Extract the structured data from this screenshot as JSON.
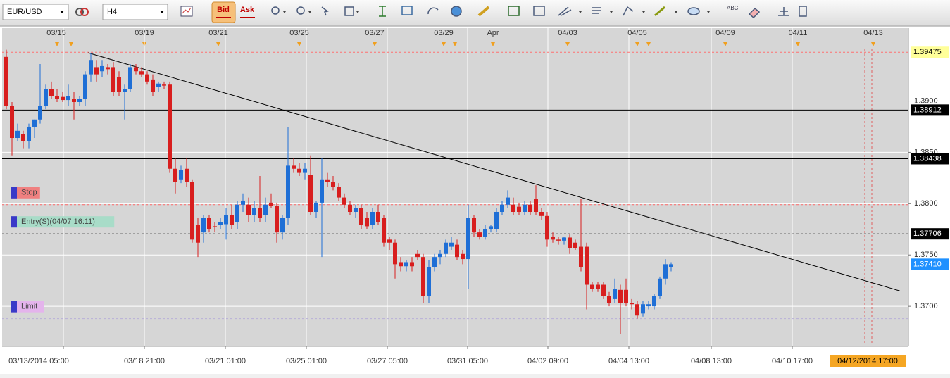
{
  "toolbar": {
    "symbol": "EUR/USD",
    "timeframe": "H4",
    "bid": "Bid",
    "ask": "Ask",
    "text_tool": "ABC"
  },
  "chart_data": {
    "type": "candlestick",
    "ylim": [
      1.3661,
      1.3971
    ],
    "yticks": [
      {
        "value": 1.37,
        "label": "1.3700"
      },
      {
        "value": 1.375,
        "label": "1.3750"
      },
      {
        "value": 1.38,
        "label": "1.3800"
      },
      {
        "value": 1.385,
        "label": "1.3850"
      },
      {
        "value": 1.39,
        "label": "1.3900"
      }
    ],
    "grid": true,
    "up_color": "#1f6fd6",
    "down_color": "#d81e1e",
    "date_labels": [
      "03/15",
      "03/19",
      "03/21",
      "03/25",
      "03/27",
      "03/29",
      "Apr",
      "04/03",
      "04/05",
      "04/09",
      "04/11",
      "04/13"
    ],
    "time_labels": [
      "03/13/2014 05:00",
      "03/18 21:00",
      "03/21 01:00",
      "03/25 01:00",
      "03/27 05:00",
      "03/31 05:00",
      "04/02 09:00",
      "04/04 13:00",
      "04/08 13:00",
      "04/10 17:00"
    ],
    "cursor_time": "04/12/2014 17:00",
    "candles": [
      [
        1.3943,
        1.395,
        1.3892,
        1.3895
      ],
      [
        1.3895,
        1.3899,
        1.3847,
        1.3864
      ],
      [
        1.3864,
        1.3878,
        1.3861,
        1.3871
      ],
      [
        1.3868,
        1.3871,
        1.3854,
        1.3861
      ],
      [
        1.3861,
        1.3878,
        1.3854,
        1.3875
      ],
      [
        1.3875,
        1.3882,
        1.3864,
        1.3882
      ],
      [
        1.3882,
        1.3936,
        1.3878,
        1.3895
      ],
      [
        1.3895,
        1.3916,
        1.3892,
        1.3912
      ],
      [
        1.3912,
        1.3919,
        1.3902,
        1.3905
      ],
      [
        1.3905,
        1.3912,
        1.3899,
        1.3902
      ],
      [
        1.3904,
        1.3909,
        1.3899,
        1.3901
      ],
      [
        1.3901,
        1.3916,
        1.3895,
        1.3905
      ],
      [
        1.3902,
        1.3909,
        1.3882,
        1.3899
      ],
      [
        1.3899,
        1.3905,
        1.3895,
        1.3902
      ],
      [
        1.3902,
        1.3929,
        1.3895,
        1.3926
      ],
      [
        1.3926,
        1.3947,
        1.3919,
        1.394
      ],
      [
        1.3933,
        1.394,
        1.3919,
        1.3926
      ],
      [
        1.3929,
        1.394,
        1.3923,
        1.3934
      ],
      [
        1.3933,
        1.3936,
        1.3926,
        1.3931
      ],
      [
        1.3933,
        1.3938,
        1.3905,
        1.3909
      ],
      [
        1.3923,
        1.3929,
        1.3905,
        1.3909
      ],
      [
        1.3909,
        1.3916,
        1.3882,
        1.3912
      ],
      [
        1.3912,
        1.3936,
        1.3909,
        1.3933
      ],
      [
        1.3933,
        1.3936,
        1.3926,
        1.3929
      ],
      [
        1.3929,
        1.3933,
        1.3923,
        1.3926
      ],
      [
        1.3926,
        1.3929,
        1.3916,
        1.3919
      ],
      [
        1.3921,
        1.3926,
        1.3905,
        1.3909
      ],
      [
        1.3914,
        1.3919,
        1.3909,
        1.3917
      ],
      [
        1.3916,
        1.3919,
        1.3912,
        1.3915
      ],
      [
        1.3916,
        1.3919,
        1.383,
        1.3834
      ],
      [
        1.3834,
        1.3844,
        1.381,
        1.3821
      ],
      [
        1.3823,
        1.3837,
        1.382,
        1.3833
      ],
      [
        1.3834,
        1.3844,
        1.3816,
        1.3821
      ],
      [
        1.3821,
        1.3823,
        1.3762,
        1.3765
      ],
      [
        1.3779,
        1.3786,
        1.3748,
        1.3762
      ],
      [
        1.3772,
        1.3789,
        1.3762,
        1.3786
      ],
      [
        1.3786,
        1.3789,
        1.3772,
        1.3775
      ],
      [
        1.3778,
        1.3782,
        1.3772,
        1.3777
      ],
      [
        1.3779,
        1.3786,
        1.3775,
        1.3782
      ],
      [
        1.378,
        1.3796,
        1.3765,
        1.3789
      ],
      [
        1.3789,
        1.3799,
        1.3775,
        1.3779
      ],
      [
        1.3782,
        1.3803,
        1.3775,
        1.3799
      ],
      [
        1.3799,
        1.381,
        1.3792,
        1.3803
      ],
      [
        1.3799,
        1.3806,
        1.3782,
        1.3789
      ],
      [
        1.3789,
        1.3803,
        1.3782,
        1.3796
      ],
      [
        1.3796,
        1.3827,
        1.3782,
        1.3786
      ],
      [
        1.3789,
        1.3806,
        1.3782,
        1.3799
      ],
      [
        1.3801,
        1.381,
        1.3796,
        1.3798
      ],
      [
        1.3798,
        1.3801,
        1.3762,
        1.3772
      ],
      [
        1.3772,
        1.3789,
        1.3765,
        1.3786
      ],
      [
        1.3786,
        1.3875,
        1.3779,
        1.3837
      ],
      [
        1.3837,
        1.3844,
        1.383,
        1.3834
      ],
      [
        1.3834,
        1.384,
        1.3827,
        1.383
      ],
      [
        1.383,
        1.384,
        1.3823,
        1.3834
      ],
      [
        1.3828,
        1.3847,
        1.3789,
        1.3792
      ],
      [
        1.3792,
        1.3803,
        1.3786,
        1.3801
      ],
      [
        1.3801,
        1.3844,
        1.3748,
        1.3823
      ],
      [
        1.3823,
        1.383,
        1.3816,
        1.3821
      ],
      [
        1.3821,
        1.3827,
        1.3813,
        1.3816
      ],
      [
        1.3816,
        1.382,
        1.3803,
        1.3806
      ],
      [
        1.3806,
        1.381,
        1.3796,
        1.3799
      ],
      [
        1.3799,
        1.3803,
        1.3789,
        1.3792
      ],
      [
        1.3792,
        1.3799,
        1.3786,
        1.3796
      ],
      [
        1.3796,
        1.3799,
        1.3775,
        1.3779
      ],
      [
        1.3786,
        1.3792,
        1.3775,
        1.3778
      ],
      [
        1.3779,
        1.3796,
        1.3775,
        1.3792
      ],
      [
        1.3792,
        1.3799,
        1.3779,
        1.3782
      ],
      [
        1.3786,
        1.3789,
        1.3758,
        1.3762
      ],
      [
        1.3765,
        1.3768,
        1.3755,
        1.3762
      ],
      [
        1.3762,
        1.3765,
        1.3727,
        1.3741
      ],
      [
        1.3743,
        1.3748,
        1.3734,
        1.3739
      ],
      [
        1.3739,
        1.3745,
        1.3734,
        1.3743
      ],
      [
        1.3743,
        1.3748,
        1.3734,
        1.3739
      ],
      [
        1.3751,
        1.3755,
        1.3745,
        1.3748
      ],
      [
        1.3748,
        1.3751,
        1.3703,
        1.371
      ],
      [
        1.371,
        1.3745,
        1.3703,
        1.3738
      ],
      [
        1.3738,
        1.3751,
        1.3734,
        1.3748
      ],
      [
        1.3748,
        1.3755,
        1.3741,
        1.3751
      ],
      [
        1.3751,
        1.3765,
        1.3748,
        1.3762
      ],
      [
        1.3758,
        1.3768,
        1.3755,
        1.3762
      ],
      [
        1.376,
        1.3765,
        1.3745,
        1.3748
      ],
      [
        1.3751,
        1.3755,
        1.3741,
        1.3746
      ],
      [
        1.3746,
        1.3799,
        1.3717,
        1.3786
      ],
      [
        1.3786,
        1.3789,
        1.3768,
        1.3772
      ],
      [
        1.3772,
        1.3775,
        1.3765,
        1.3768
      ],
      [
        1.3768,
        1.3779,
        1.3765,
        1.3775
      ],
      [
        1.3775,
        1.3779,
        1.3772,
        1.3778
      ],
      [
        1.3775,
        1.3796,
        1.3772,
        1.3792
      ],
      [
        1.3792,
        1.3803,
        1.3789,
        1.3799
      ],
      [
        1.3799,
        1.3813,
        1.3796,
        1.3806
      ],
      [
        1.3799,
        1.3806,
        1.3789,
        1.3792
      ],
      [
        1.3797,
        1.3801,
        1.3789,
        1.3792
      ],
      [
        1.3792,
        1.3803,
        1.3789,
        1.3799
      ],
      [
        1.3799,
        1.3803,
        1.3789,
        1.3792
      ],
      [
        1.3805,
        1.3818,
        1.3789,
        1.3792
      ],
      [
        1.3792,
        1.3796,
        1.3784,
        1.3788
      ],
      [
        1.3788,
        1.3792,
        1.3758,
        1.3765
      ],
      [
        1.3768,
        1.3772,
        1.3762,
        1.3765
      ],
      [
        1.3765,
        1.3768,
        1.376,
        1.3764
      ],
      [
        1.3764,
        1.3768,
        1.376,
        1.3767
      ],
      [
        1.3767,
        1.377,
        1.3751,
        1.3757
      ],
      [
        1.3762,
        1.3765,
        1.3755,
        1.3757
      ],
      [
        1.3758,
        1.3805,
        1.3734,
        1.3738
      ],
      [
        1.3758,
        1.3762,
        1.3697,
        1.3721
      ],
      [
        1.3721,
        1.3724,
        1.3714,
        1.3717
      ],
      [
        1.3721,
        1.3724,
        1.3714,
        1.3717
      ],
      [
        1.3721,
        1.3724,
        1.3707,
        1.371
      ],
      [
        1.371,
        1.3714,
        1.37,
        1.3703
      ],
      [
        1.3707,
        1.3727,
        1.3703,
        1.3717
      ],
      [
        1.3716,
        1.3721,
        1.3673,
        1.3703
      ],
      [
        1.3716,
        1.3727,
        1.37,
        1.3703
      ],
      [
        1.3703,
        1.3707,
        1.3697,
        1.3702
      ],
      [
        1.3702,
        1.3705,
        1.3688,
        1.3691
      ],
      [
        1.3693,
        1.3705,
        1.369,
        1.3702
      ],
      [
        1.37,
        1.3705,
        1.3697,
        1.3702
      ],
      [
        1.37,
        1.3712,
        1.3697,
        1.371
      ],
      [
        1.371,
        1.3729,
        1.3707,
        1.3727
      ],
      [
        1.3727,
        1.3746,
        1.3721,
        1.3741
      ],
      [
        1.3738,
        1.3743,
        1.3734,
        1.3741
      ]
    ],
    "levels": [
      {
        "value": 1.39475,
        "style": "dashed",
        "color": "#ff7070",
        "label_bg": "#ffff99",
        "label_color": "#000000"
      },
      {
        "value": 1.38912,
        "style": "solid",
        "color": "#000000",
        "label_bg": "#000000",
        "label_color": "#ffffff"
      },
      {
        "value": 1.38438,
        "style": "solid",
        "color": "#000000",
        "label_bg": "#000000",
        "label_color": "#ffffff"
      },
      {
        "value": 1.3741,
        "label": "1.37410",
        "style": "none",
        "color": "#1e90ff",
        "label_bg": "#1e90ff",
        "label_color": "#ffffff"
      }
    ],
    "orders": [
      {
        "name": "Stop",
        "value": 1.3799,
        "color": "#ff6a6a",
        "label_bg": "#f08080"
      },
      {
        "name": "Entry(S)(04/07 16:11)",
        "value": 1.37706,
        "color": "#000000",
        "label_bg": "#a8dcc8",
        "price_label": true
      },
      {
        "name": "Limit",
        "value": 1.3688,
        "color": "#b8b0d8",
        "label_bg": "#e4b4ec"
      }
    ],
    "trendline": {
      "start": [
        14.5,
        1.3947
      ],
      "end": [
        158.6,
        1.3715
      ],
      "color": "#000000"
    }
  }
}
